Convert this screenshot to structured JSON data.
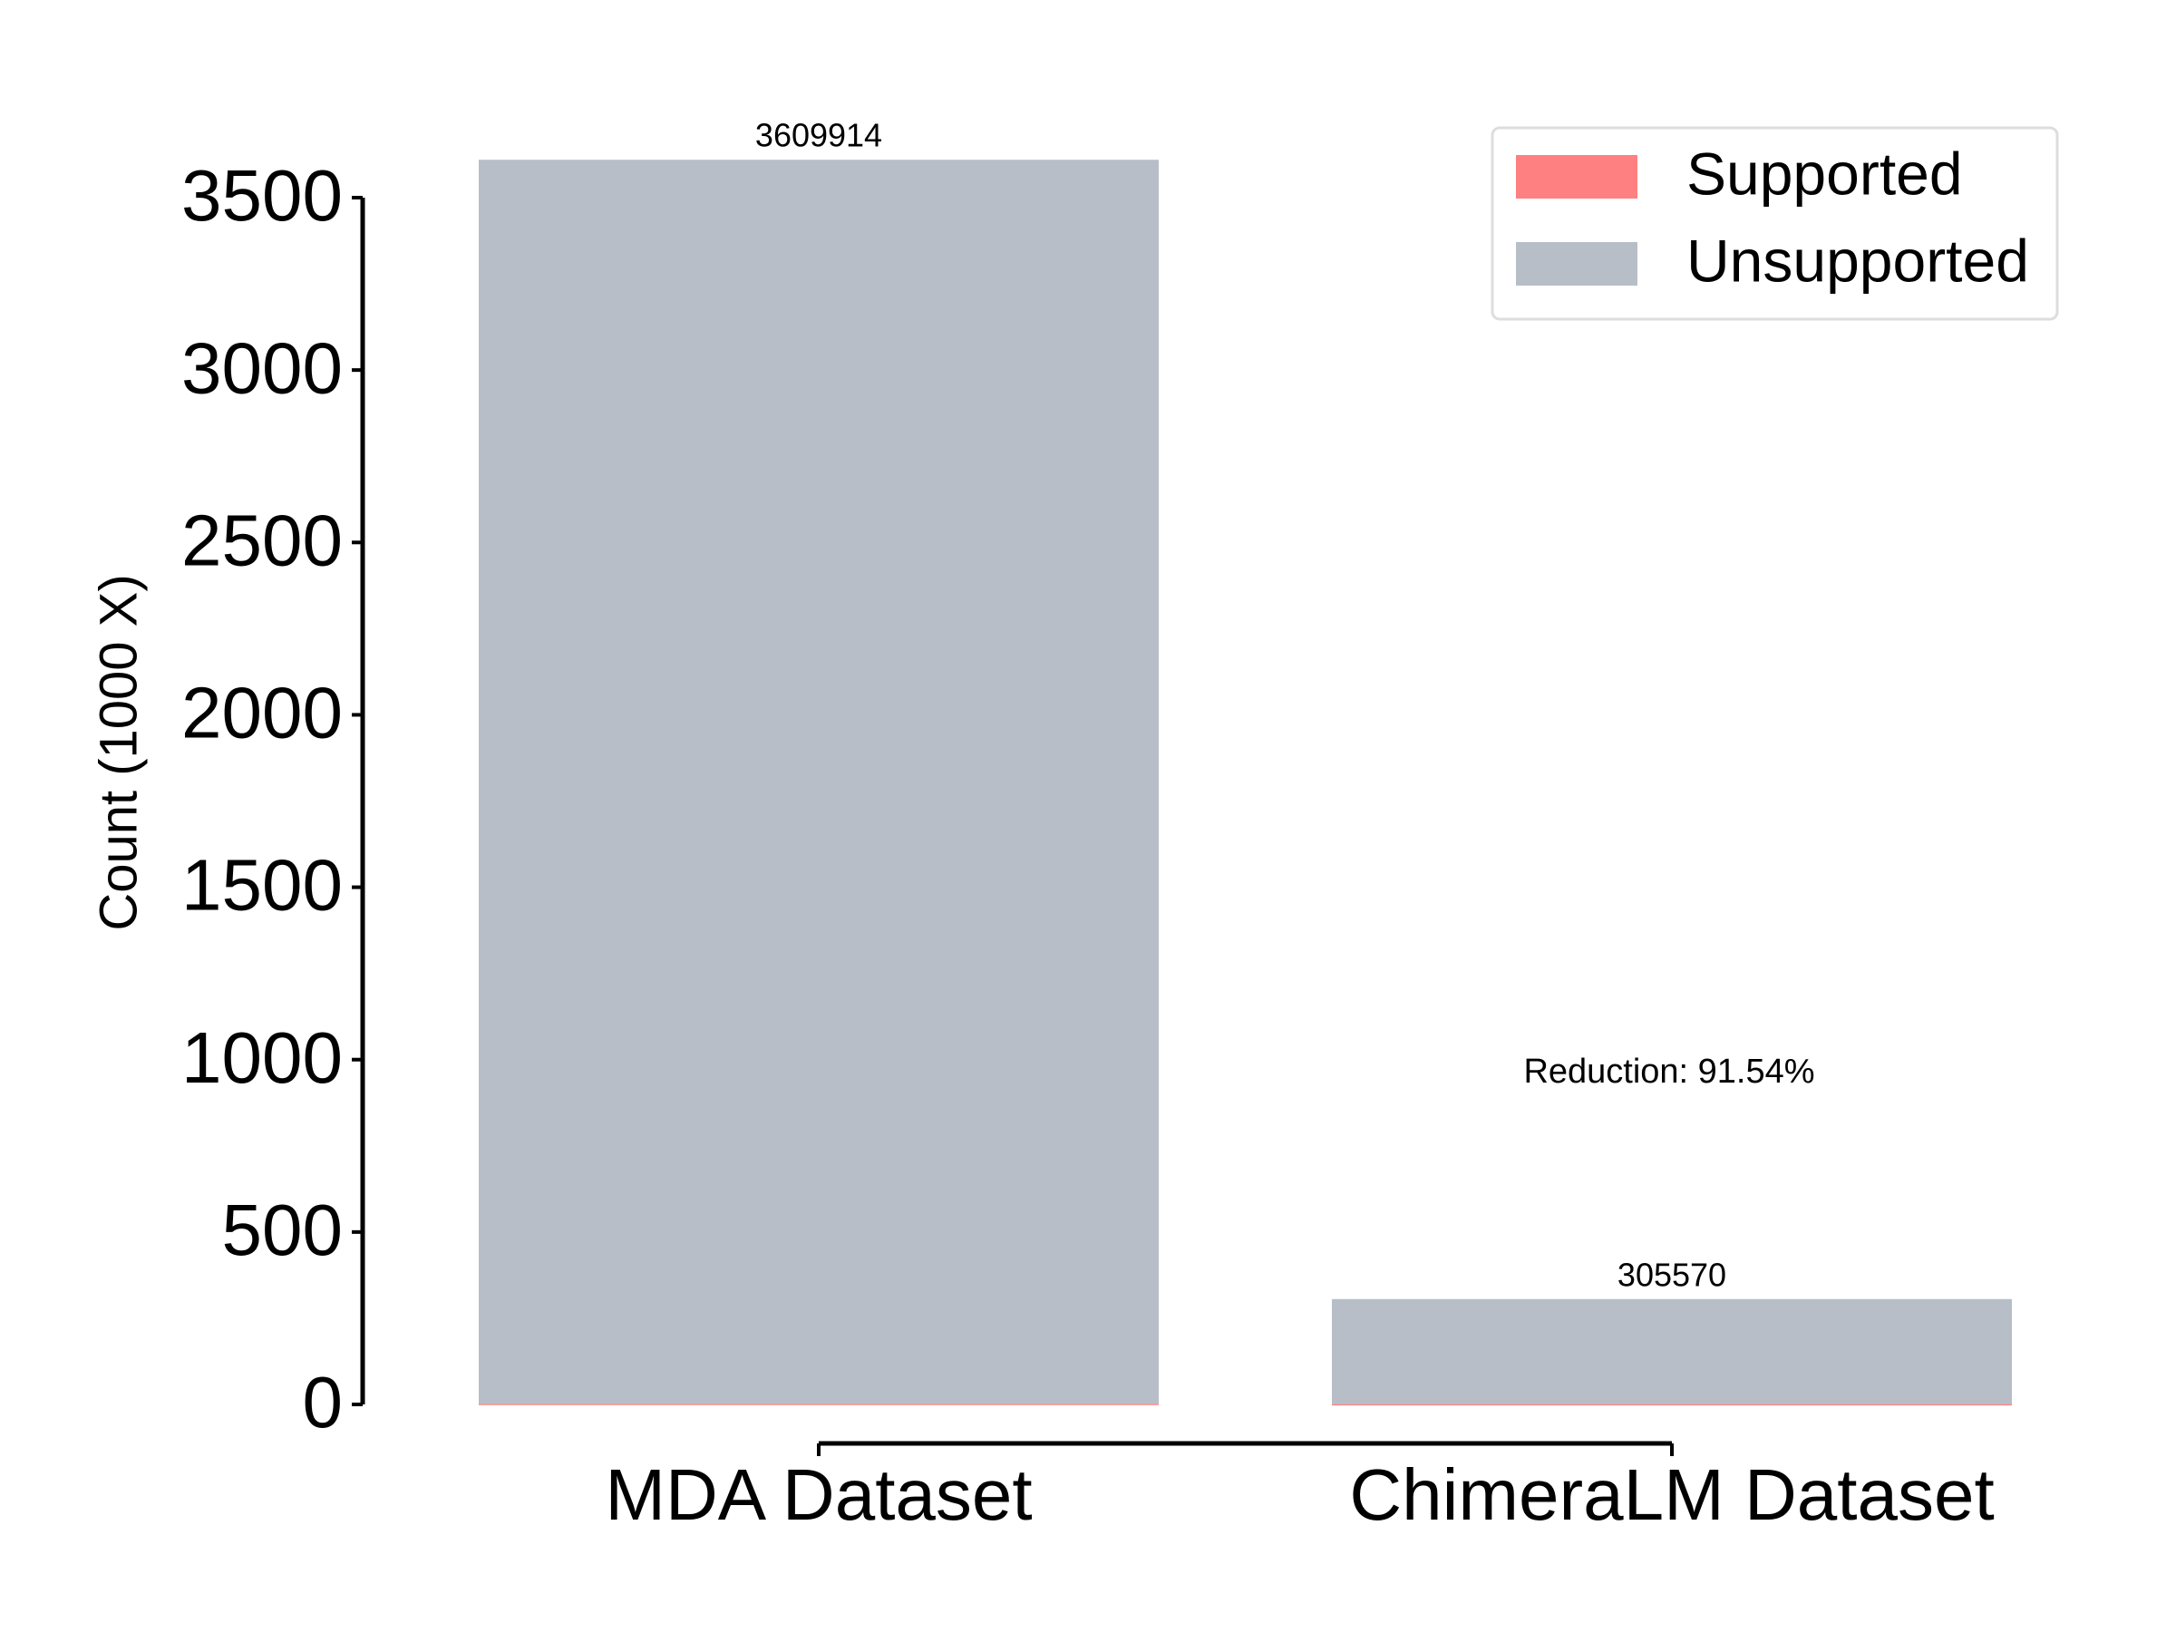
{
  "chart_data": {
    "type": "stacked_bar",
    "categories": [
      "MDA Dataset",
      "ChimeraLM Dataset"
    ],
    "ylabel": "Count (1000 X)",
    "series": [
      {
        "name": "Supported",
        "color": "#ff8080",
        "values": [
          2,
          1
        ]
      },
      {
        "name": "Unsupported",
        "color": "#b7bec8",
        "values": [
          3607.914,
          304.57
        ]
      }
    ],
    "totals": {
      "values": [
        3609.914,
        305.57
      ],
      "value_labels": [
        "3609914",
        "305570"
      ]
    },
    "annotation": "Reduction: 91.54%",
    "annotation_color": "#ff0000",
    "ylim": [
      0,
      3500
    ],
    "yticks": [
      0,
      500,
      1000,
      1500,
      2000,
      2500,
      3000,
      3500
    ],
    "legend": "upper right",
    "grid": false
  }
}
